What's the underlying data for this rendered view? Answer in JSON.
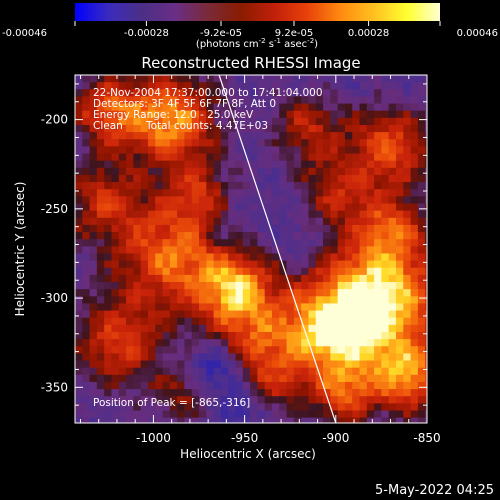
{
  "colorbar": {
    "tick_labels": [
      "-0.00046",
      "-0.00028",
      "-9.2e-05",
      "9.2e-05",
      "0.00028",
      "0.00046"
    ],
    "tick_values": [
      -0.00046,
      -0.00028,
      -9.2e-05,
      9.2e-05,
      0.00028,
      0.00046
    ],
    "range": [
      -0.00046,
      0.00046
    ],
    "units_prefix": "(photons cm",
    "units_exp1": "-2",
    "units_mid": " s",
    "units_exp2": "-1",
    "units_suffix": " asec",
    "units_exp3": "-2",
    "units_close": ")",
    "colors": [
      "#0000ff",
      "#3a2bbf",
      "#4b2f86",
      "#6a2e86",
      "#7a2a3a",
      "#8a1c00",
      "#c0200a",
      "#e8420a",
      "#ff8a10",
      "#ffc020",
      "#ffff30",
      "#ffffd0"
    ]
  },
  "chart_data": {
    "type": "heatmap",
    "title": "Reconstructed RHESSI Image",
    "xlabel": "Heliocentric X (arcsec)",
    "ylabel": "Heliocentric Y (arcsec)",
    "xlim": [
      -1043,
      -850
    ],
    "ylim": [
      -370,
      -175
    ],
    "x_ticks": [
      -1000,
      -950,
      -900,
      -850
    ],
    "x_tick_labels": [
      "-1000",
      "-950",
      "-900",
      "-850"
    ],
    "y_ticks": [
      -200,
      -250,
      -300,
      -350
    ],
    "y_tick_labels": [
      "-200",
      "-250",
      "-300",
      "-350"
    ],
    "grid": false,
    "info_lines": [
      "22-Nov-2004 17:37:00.000 to 17:41:04.000",
      "Detectors: 3F 4F 5F 6F 7F 8F, Att 0",
      "Energy Range: 12.0 - 25.0 keV"
    ],
    "clean_label": "Clean",
    "total_counts_label": "Total counts: 4.47E+03",
    "peak_label": "Position of Peak = [-865,-316]",
    "limb_points": [
      [
        -964,
        -175
      ],
      [
        -900,
        -370
      ]
    ],
    "blobs": [
      {
        "x": -990,
        "y": -200,
        "s": 18,
        "a": 0.95
      },
      {
        "x": -1025,
        "y": -195,
        "s": 14,
        "a": 0.7
      },
      {
        "x": -1030,
        "y": -245,
        "s": 16,
        "a": 0.55
      },
      {
        "x": -975,
        "y": -240,
        "s": 12,
        "a": 0.45
      },
      {
        "x": -990,
        "y": -275,
        "s": 22,
        "a": 0.85
      },
      {
        "x": -955,
        "y": -295,
        "s": 15,
        "a": 0.95
      },
      {
        "x": -1020,
        "y": -325,
        "s": 18,
        "a": 0.65
      },
      {
        "x": -945,
        "y": -325,
        "s": 15,
        "a": 0.55
      },
      {
        "x": -985,
        "y": -355,
        "s": 12,
        "a": 0.4
      },
      {
        "x": -915,
        "y": -205,
        "s": 14,
        "a": 0.55
      },
      {
        "x": -870,
        "y": -215,
        "s": 16,
        "a": 0.75
      },
      {
        "x": -900,
        "y": -240,
        "s": 14,
        "a": 0.5
      },
      {
        "x": -870,
        "y": -260,
        "s": 14,
        "a": 0.55
      },
      {
        "x": -875,
        "y": -300,
        "s": 24,
        "a": 1.15
      },
      {
        "x": -905,
        "y": -320,
        "s": 20,
        "a": 0.95
      },
      {
        "x": -860,
        "y": -345,
        "s": 14,
        "a": 0.85
      },
      {
        "x": -895,
        "y": -355,
        "s": 12,
        "a": 0.6
      },
      {
        "x": -935,
        "y": -350,
        "s": 12,
        "a": 0.4
      }
    ],
    "dips": [
      {
        "x": -965,
        "y": -340,
        "s": 10,
        "a": 0.8
      },
      {
        "x": -950,
        "y": -360,
        "s": 8,
        "a": 0.6
      },
      {
        "x": -960,
        "y": -265,
        "s": 10,
        "a": 0.35
      },
      {
        "x": -920,
        "y": -270,
        "s": 10,
        "a": 0.3
      }
    ]
  },
  "footer": {
    "date": "5-May-2022 04:25"
  }
}
